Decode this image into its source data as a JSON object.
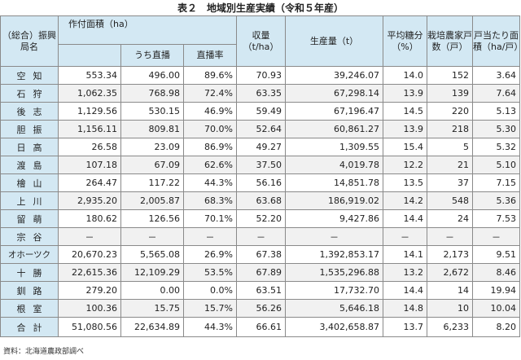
{
  "title": "表２　地域別生産実績（令和５年産）",
  "headers": {
    "region": "（総合）振興局名",
    "area": "作付面積（ha）",
    "direct": "うち直播",
    "direct_rate": "直播率",
    "yield": "収量（t/ha）",
    "production": "生産量（t）",
    "sugar": "平均糖分（%）",
    "farmers": "栽培農家戸数（戸）",
    "per_farm": "戸当たり面積（ha/戸）"
  },
  "rows": [
    {
      "name": "空知",
      "area": "553.34",
      "direct": "496.00",
      "rate": "89.6%",
      "yield": "70.93",
      "production": "39,246.07",
      "sugar": "14.0",
      "farmers": "152",
      "per": "3.64"
    },
    {
      "name": "石狩",
      "area": "1,062.35",
      "direct": "768.98",
      "rate": "72.4%",
      "yield": "63.35",
      "production": "67,298.14",
      "sugar": "13.9",
      "farmers": "139",
      "per": "7.64"
    },
    {
      "name": "後志",
      "area": "1,129.56",
      "direct": "530.15",
      "rate": "46.9%",
      "yield": "59.49",
      "production": "67,196.47",
      "sugar": "14.5",
      "farmers": "220",
      "per": "5.13"
    },
    {
      "name": "胆振",
      "area": "1,156.11",
      "direct": "809.81",
      "rate": "70.0%",
      "yield": "52.64",
      "production": "60,861.27",
      "sugar": "13.9",
      "farmers": "218",
      "per": "5.30"
    },
    {
      "name": "日高",
      "area": "26.58",
      "direct": "23.09",
      "rate": "86.9%",
      "yield": "49.27",
      "production": "1,309.55",
      "sugar": "15.4",
      "farmers": "5",
      "per": "5.32"
    },
    {
      "name": "渡島",
      "area": "107.18",
      "direct": "67.09",
      "rate": "62.6%",
      "yield": "37.50",
      "production": "4,019.78",
      "sugar": "12.2",
      "farmers": "21",
      "per": "5.10"
    },
    {
      "name": "檜山",
      "area": "264.47",
      "direct": "117.22",
      "rate": "44.3%",
      "yield": "56.16",
      "production": "14,851.78",
      "sugar": "13.5",
      "farmers": "37",
      "per": "7.15"
    },
    {
      "name": "上川",
      "area": "2,935.20",
      "direct": "2,005.87",
      "rate": "68.3%",
      "yield": "63.68",
      "production": "186,919.02",
      "sugar": "14.2",
      "farmers": "548",
      "per": "5.36"
    },
    {
      "name": "留萌",
      "area": "180.62",
      "direct": "126.56",
      "rate": "70.1%",
      "yield": "52.20",
      "production": "9,427.86",
      "sugar": "14.4",
      "farmers": "24",
      "per": "7.53"
    },
    {
      "name": "宗谷",
      "area": "－",
      "direct": "－",
      "rate": "－",
      "yield": "－",
      "production": "－",
      "sugar": "－",
      "farmers": "－",
      "per": "－"
    },
    {
      "name": "オホーツク",
      "area": "20,670.23",
      "direct": "5,565.08",
      "rate": "26.9%",
      "yield": "67.38",
      "production": "1,392,853.17",
      "sugar": "14.1",
      "farmers": "2,173",
      "per": "9.51"
    },
    {
      "name": "十勝",
      "area": "22,615.36",
      "direct": "12,109.29",
      "rate": "53.5%",
      "yield": "67.89",
      "production": "1,535,296.88",
      "sugar": "13.2",
      "farmers": "2,672",
      "per": "8.46"
    },
    {
      "name": "釧路",
      "area": "279.20",
      "direct": "0.00",
      "rate": "0.0%",
      "yield": "63.51",
      "production": "17,732.70",
      "sugar": "14.4",
      "farmers": "14",
      "per": "19.94"
    },
    {
      "name": "根室",
      "area": "100.36",
      "direct": "15.75",
      "rate": "15.7%",
      "yield": "56.26",
      "production": "5,646.18",
      "sugar": "14.8",
      "farmers": "10",
      "per": "10.04"
    }
  ],
  "total": {
    "name": "合計",
    "area": "51,080.56",
    "direct": "22,634.89",
    "rate": "44.3%",
    "yield": "66.61",
    "production": "3,402,658.87",
    "sugar": "13.7",
    "farmers": "6,233",
    "per": "8.20"
  },
  "source": "資料：北海道農政部調べ"
}
